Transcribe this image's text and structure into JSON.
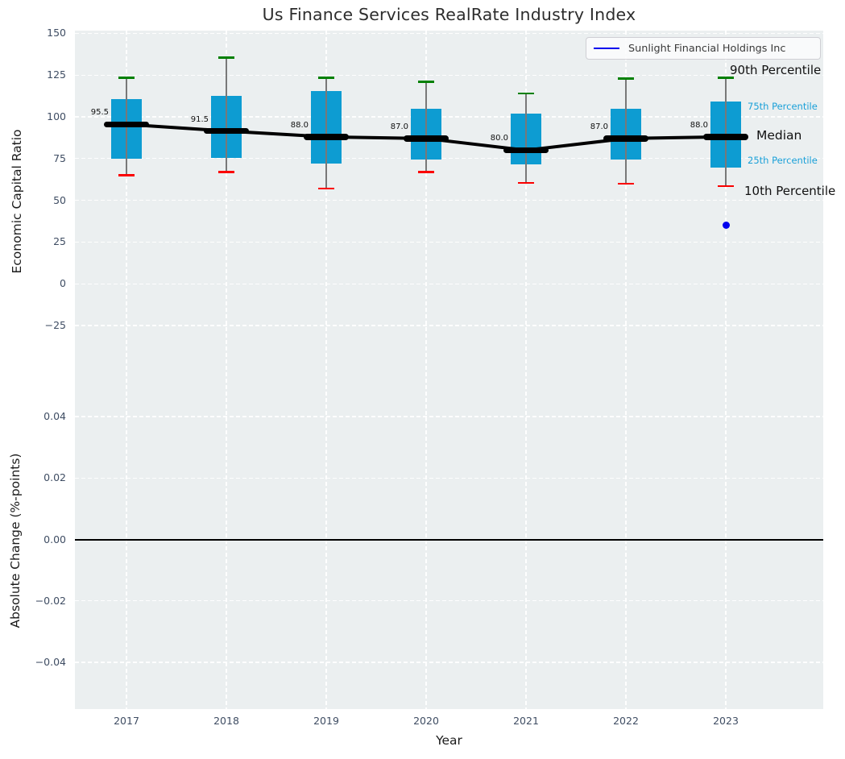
{
  "title": "Us Finance Services RealRate Industry Index",
  "xlabel": "Year",
  "legend": {
    "label": "Sunlight Financial Holdings Inc"
  },
  "top_panel": {
    "ylabel": "Economic Capital Ratio",
    "yticks": [
      {
        "label": "150",
        "v": 150
      },
      {
        "label": "125",
        "v": 125
      },
      {
        "label": "100",
        "v": 100
      },
      {
        "label": "75",
        "v": 75
      },
      {
        "label": "50",
        "v": 50
      },
      {
        "label": "25",
        "v": 25
      },
      {
        "label": "0",
        "v": 0
      },
      {
        "label": "−25",
        "v": -25
      }
    ],
    "annotations": {
      "p90": "90th Percentile",
      "p75": "75th Percentile",
      "median": "Median",
      "p25": "25th Percentile",
      "p10": "10th Percentile"
    }
  },
  "bottom_panel": {
    "ylabel": "Absolute Change (%-points)",
    "yticks": [
      {
        "label": "0.04",
        "v": 0.04
      },
      {
        "label": "0.02",
        "v": 0.02
      },
      {
        "label": "0.00",
        "v": 0
      },
      {
        "label": "−0.02",
        "v": -0.02
      },
      {
        "label": "−0.04",
        "v": -0.04
      }
    ],
    "zero_line_value": 0
  },
  "colors": {
    "box_fill": "#0d9cd2",
    "p90_cap": "#008000",
    "p10_cap": "#fb0000",
    "whisker": "#787878",
    "median": "#000000",
    "company": "#0000ee",
    "annotation_blue": "#1aa0d8",
    "plot_bg": "#ebeff0",
    "tick_label": "#3f4d63"
  },
  "chart_data": {
    "type": "boxplot+line",
    "title": "Us Finance Services RealRate Industry Index",
    "xlabel": "Year",
    "ylabel_top": "Economic Capital Ratio",
    "ylabel_bottom": "Absolute Change (%-points)",
    "categories": [
      2017,
      2018,
      2019,
      2020,
      2021,
      2022,
      2023
    ],
    "ylim_top": [
      -51,
      152
    ],
    "ylim_bottom": [
      -0.055,
      0.0545
    ],
    "grid": true,
    "legend_position": "upper right",
    "series": [
      {
        "name": "90th Percentile",
        "values": [
          123.5,
          135.5,
          123.5,
          121,
          114,
          123,
          123.5
        ]
      },
      {
        "name": "75th Percentile",
        "values": [
          110.5,
          112.5,
          115.5,
          105,
          102,
          105,
          109
        ]
      },
      {
        "name": "Median",
        "values": [
          95.5,
          91.5,
          88.0,
          87.0,
          80.0,
          87.0,
          88.0
        ]
      },
      {
        "name": "25th Percentile",
        "values": [
          75,
          75.5,
          72,
          74.5,
          71.5,
          74.5,
          69.5
        ]
      },
      {
        "name": "10th Percentile",
        "values": [
          65,
          67,
          57,
          67,
          60.5,
          60,
          58.5
        ]
      },
      {
        "name": "Sunlight Financial Holdings Inc",
        "type": "scatter",
        "points": [
          {
            "x": 2023,
            "y": 35
          }
        ]
      }
    ],
    "median_labels": [
      "95.5",
      "91.5",
      "88.0",
      "87.0",
      "80.0",
      "87.0",
      "88.0"
    ],
    "bottom_series": []
  }
}
